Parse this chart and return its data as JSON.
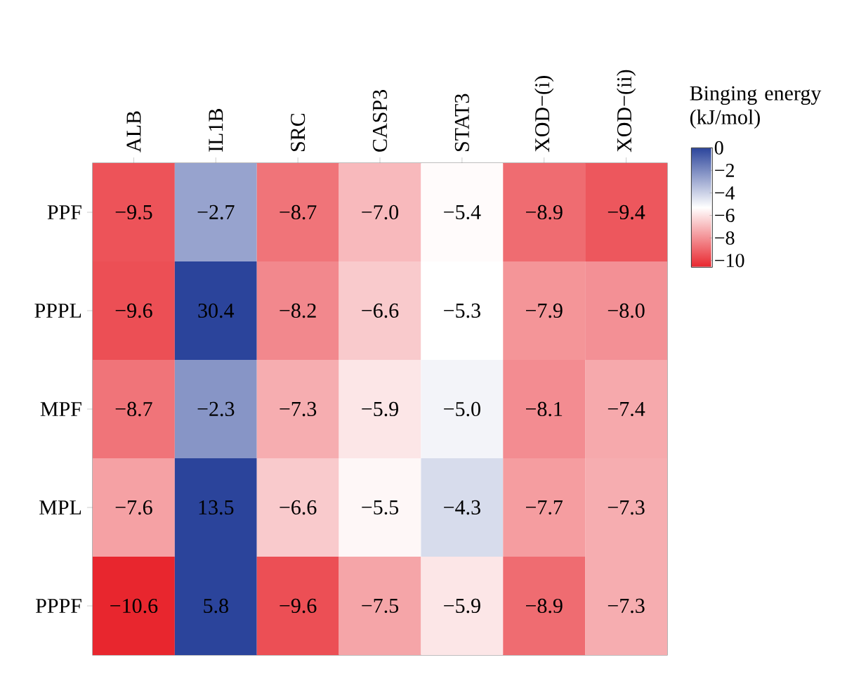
{
  "chart_data": {
    "type": "heatmap",
    "categories": [
      "ALB",
      "IL1B",
      "SRC",
      "CASP3",
      "STAT3",
      "XOD−(i)",
      "XOD−(ii)"
    ],
    "y_categories": [
      "PPF",
      "PPPL",
      "MPF",
      "MPL",
      "PPPF"
    ],
    "cells": [
      [
        -9.5,
        -2.7,
        -8.7,
        -7.0,
        -5.4,
        -8.9,
        -9.4
      ],
      [
        -9.6,
        30.4,
        -8.2,
        -6.6,
        -5.3,
        -7.9,
        -8.0
      ],
      [
        -8.7,
        -2.3,
        -7.3,
        -5.9,
        -5.0,
        -8.1,
        -7.4
      ],
      [
        -7.6,
        13.5,
        -6.6,
        -5.5,
        -4.3,
        -7.7,
        -7.3
      ],
      [
        -10.6,
        5.8,
        -9.6,
        -7.5,
        -5.9,
        -8.9,
        -7.3
      ]
    ],
    "data_labels": true,
    "cell_labels": [
      [
        "−9.5",
        "−2.7",
        "−8.7",
        "−7.0",
        "−5.4",
        "−8.9",
        "−9.4"
      ],
      [
        "−9.6",
        "30.4",
        "−8.2",
        "−6.6",
        "−5.3",
        "−7.9",
        "−8.0"
      ],
      [
        "−8.7",
        "−2.3",
        "−7.3",
        "−5.9",
        "−5.0",
        "−8.1",
        "−7.4"
      ],
      [
        "−7.6",
        "13.5",
        "−6.6",
        "−5.5",
        "−4.3",
        "−7.7",
        "−7.3"
      ],
      [
        "−10.6",
        "5.8",
        "−9.6",
        "−7.5",
        "−5.9",
        "−8.9",
        "−7.3"
      ]
    ],
    "clabel": "Binging energy (kJ/mol)",
    "clim": [
      -10.6,
      0
    ],
    "cticks": [
      0,
      {
        "value": -2,
        "label": "−2"
      },
      {
        "value": -4,
        "label": "−4"
      },
      {
        "value": -6,
        "label": "−6"
      },
      {
        "value": -8,
        "label": "−8"
      },
      {
        "value": -10,
        "label": "−10"
      }
    ],
    "colors": [
      "#e8262e",
      "#ffffff",
      "#2b449b"
    ]
  }
}
